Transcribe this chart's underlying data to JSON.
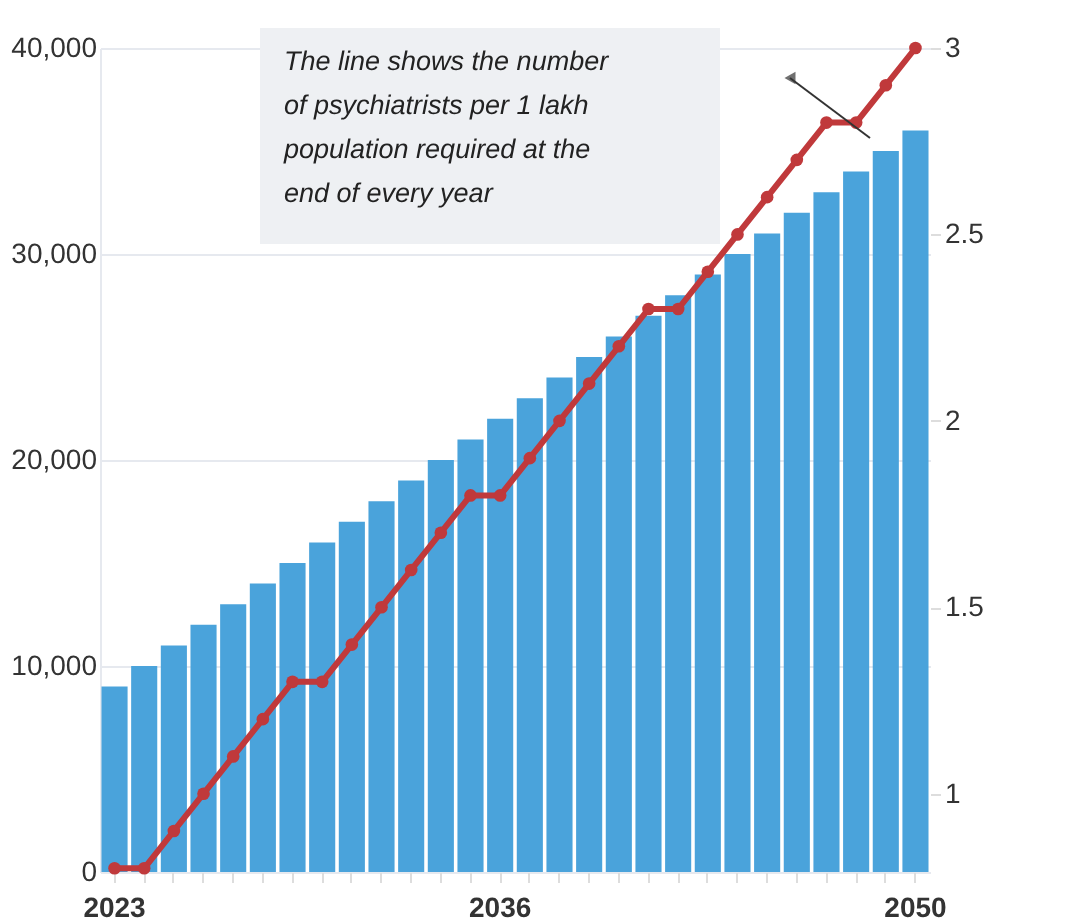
{
  "chart_data": {
    "type": "bar",
    "categories": [
      "2023",
      null,
      null,
      null,
      null,
      null,
      null,
      null,
      null,
      null,
      null,
      null,
      null,
      "2036",
      null,
      null,
      null,
      null,
      null,
      null,
      null,
      null,
      null,
      null,
      null,
      null,
      null,
      "2050"
    ],
    "series": [
      {
        "color": "#4aa3db",
        "values": [
          9000,
          10000,
          11000,
          12000,
          13000,
          14000,
          15000,
          16000,
          17000,
          18000,
          19000,
          20000,
          21000,
          22000,
          23000,
          24000,
          25000,
          26000,
          27000,
          28000,
          29000,
          30000,
          31000,
          32000,
          33000,
          34000,
          35000,
          36000
        ]
      },
      {
        "type": "line",
        "axis": "y2",
        "color": "#c0393b",
        "marker": "circle",
        "line_style": "solid",
        "values": [
          0.8,
          0.8,
          0.9,
          1.0,
          1.1,
          1.2,
          1.3,
          1.3,
          1.4,
          1.5,
          1.6,
          1.7,
          1.8,
          1.8,
          1.9,
          2.0,
          2.1,
          2.2,
          2.3,
          2.3,
          2.4,
          2.5,
          2.6,
          2.7,
          2.8,
          2.8,
          2.9,
          3.0
        ]
      }
    ],
    "ylim": [
      0,
      40000
    ],
    "yticks": [
      {
        "value": 0,
        "label": "0"
      },
      {
        "value": 10000,
        "label": "10,000"
      },
      {
        "value": 20000,
        "label": "20,000"
      },
      {
        "value": 30000,
        "label": "30,000"
      },
      {
        "value": 40000,
        "label": "40,000"
      }
    ],
    "y2lim": [
      0.79,
      3
    ],
    "y2ticks": [
      1,
      1.5,
      2,
      2.5,
      3
    ],
    "grid": "y",
    "annotations": [
      "The line shows the number of psychiatrists per 1 lakh population required at the end of every year"
    ]
  }
}
